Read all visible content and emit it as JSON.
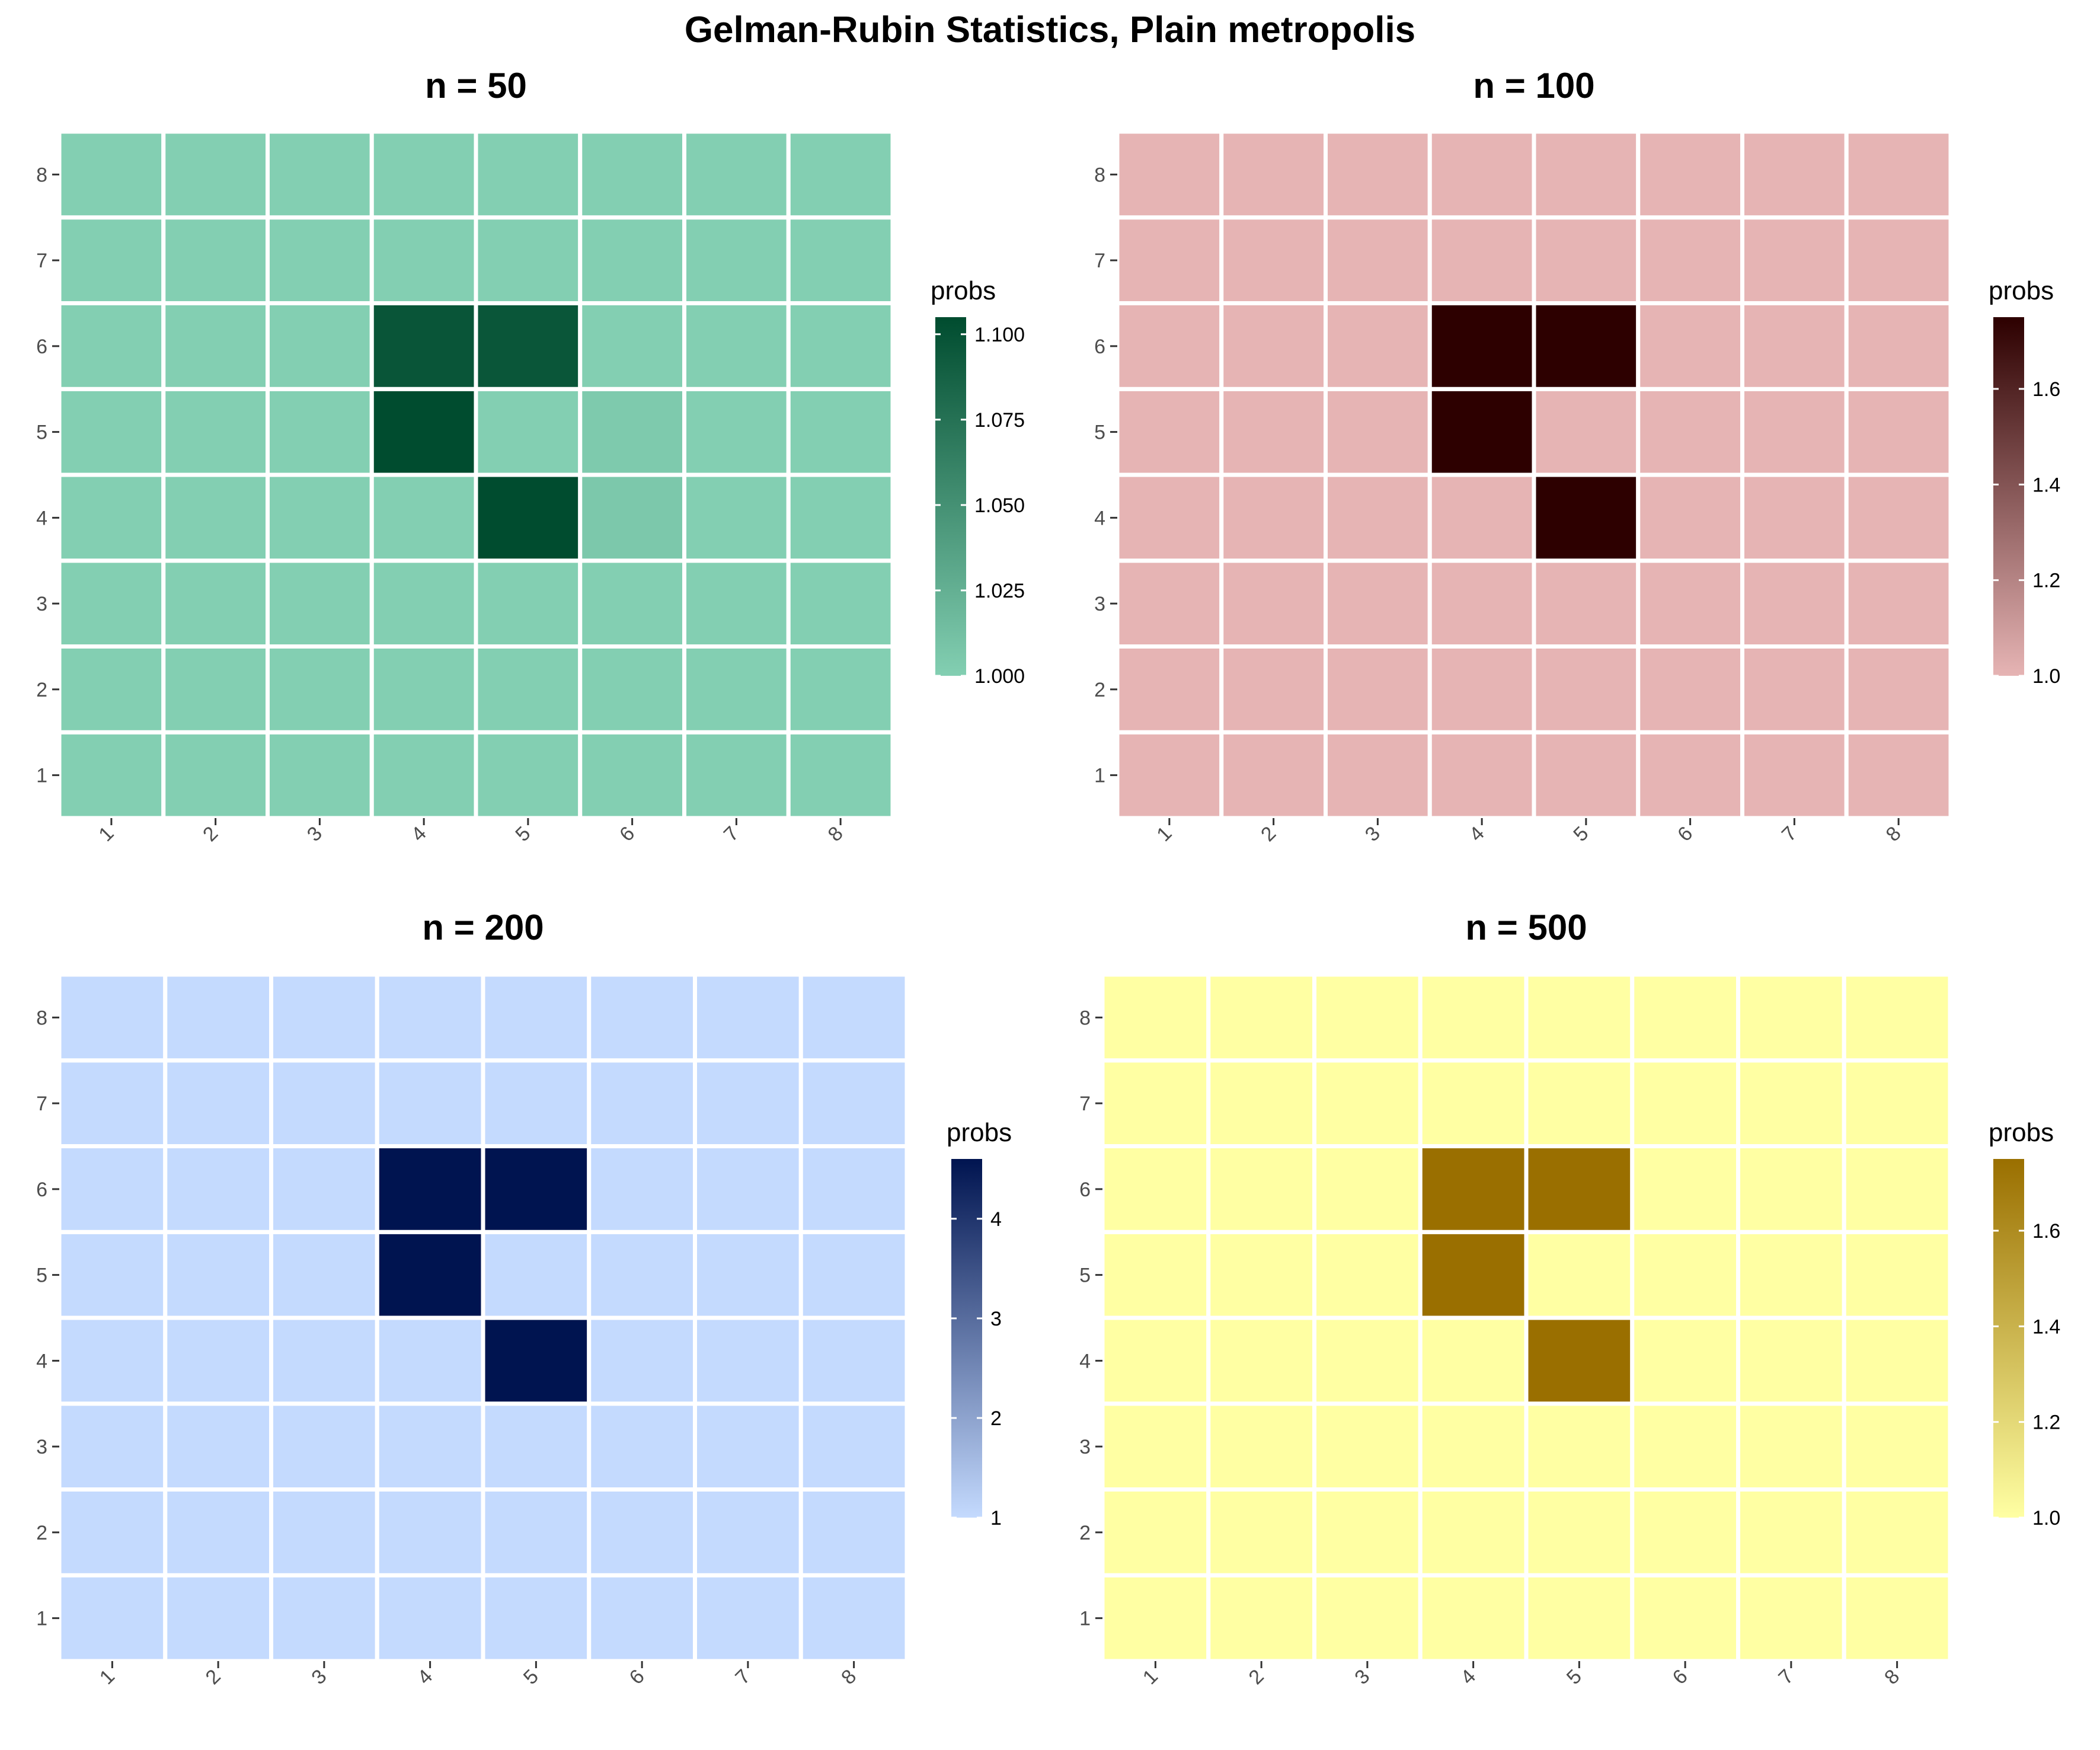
{
  "title": "Gelman-Rubin Statistics, Plain metropolis",
  "chart_data": [
    {
      "type": "heatmap",
      "title": "n = 50",
      "x_categories": [
        "1",
        "2",
        "3",
        "4",
        "5",
        "6",
        "7",
        "8"
      ],
      "y_categories": [
        "1",
        "2",
        "3",
        "4",
        "5",
        "6",
        "7",
        "8"
      ],
      "legend_title": "probs",
      "color_low": "#83cfb2",
      "color_high": "#004c2f",
      "zlim": [
        1.0,
        1.105
      ],
      "legend_breaks": [
        "1.000",
        "1.025",
        "1.050",
        "1.075",
        "1.100"
      ],
      "values": [
        [
          1.0,
          1.0,
          1.0,
          1.0,
          1.0,
          1.0,
          1.0,
          1.0
        ],
        [
          1.0,
          1.0,
          1.0,
          1.0,
          1.0,
          1.0,
          1.0,
          1.0
        ],
        [
          1.0,
          1.0,
          1.0,
          1.0,
          1.0,
          1.0,
          1.0,
          1.0
        ],
        [
          1.0,
          1.0,
          1.0,
          1.0,
          1.105,
          1.006,
          1.0,
          1.0
        ],
        [
          1.0,
          1.0,
          1.0,
          1.105,
          1.0,
          1.004,
          1.0,
          1.0
        ],
        [
          1.0,
          1.0,
          1.0,
          1.098,
          1.097,
          1.0,
          1.0,
          1.0
        ],
        [
          1.0,
          1.0,
          1.0,
          1.0,
          1.0,
          1.0,
          1.0,
          1.0
        ],
        [
          1.0,
          1.0,
          1.0,
          1.0,
          1.0,
          1.0,
          1.0,
          1.0
        ]
      ]
    },
    {
      "type": "heatmap",
      "title": "n = 100",
      "x_categories": [
        "1",
        "2",
        "3",
        "4",
        "5",
        "6",
        "7",
        "8"
      ],
      "y_categories": [
        "1",
        "2",
        "3",
        "4",
        "5",
        "6",
        "7",
        "8"
      ],
      "legend_title": "probs",
      "color_low": "#e6b4b4",
      "color_high": "#2d0000",
      "zlim": [
        1.0,
        1.75
      ],
      "legend_breaks": [
        "1.0",
        "1.2",
        "1.4",
        "1.6"
      ],
      "values": [
        [
          1.0,
          1.0,
          1.0,
          1.0,
          1.0,
          1.0,
          1.0,
          1.0
        ],
        [
          1.0,
          1.0,
          1.0,
          1.0,
          1.0,
          1.0,
          1.0,
          1.0
        ],
        [
          1.0,
          1.0,
          1.0,
          1.0,
          1.0,
          1.0,
          1.0,
          1.0
        ],
        [
          1.0,
          1.0,
          1.0,
          1.0,
          1.75,
          1.0,
          1.0,
          1.0
        ],
        [
          1.0,
          1.0,
          1.0,
          1.75,
          1.0,
          1.0,
          1.0,
          1.0
        ],
        [
          1.0,
          1.0,
          1.0,
          1.75,
          1.75,
          1.0,
          1.0,
          1.0
        ],
        [
          1.0,
          1.0,
          1.0,
          1.0,
          1.0,
          1.0,
          1.0,
          1.0
        ],
        [
          1.0,
          1.0,
          1.0,
          1.0,
          1.0,
          1.0,
          1.0,
          1.0
        ]
      ]
    },
    {
      "type": "heatmap",
      "title": "n = 200",
      "x_categories": [
        "1",
        "2",
        "3",
        "4",
        "5",
        "6",
        "7",
        "8"
      ],
      "y_categories": [
        "1",
        "2",
        "3",
        "4",
        "5",
        "6",
        "7",
        "8"
      ],
      "legend_title": "probs",
      "color_low": "#c4dafe",
      "color_high": "#001450",
      "zlim": [
        1.0,
        4.6
      ],
      "legend_breaks": [
        "1",
        "2",
        "3",
        "4"
      ],
      "values": [
        [
          1.0,
          1.0,
          1.0,
          1.0,
          1.0,
          1.0,
          1.0,
          1.0
        ],
        [
          1.0,
          1.0,
          1.0,
          1.0,
          1.0,
          1.0,
          1.0,
          1.0
        ],
        [
          1.0,
          1.0,
          1.0,
          1.0,
          1.0,
          1.0,
          1.0,
          1.0
        ],
        [
          1.0,
          1.0,
          1.0,
          1.0,
          4.6,
          1.0,
          1.0,
          1.0
        ],
        [
          1.0,
          1.0,
          1.0,
          4.6,
          1.0,
          1.0,
          1.0,
          1.0
        ],
        [
          1.0,
          1.0,
          1.0,
          4.6,
          4.6,
          1.0,
          1.0,
          1.0
        ],
        [
          1.0,
          1.0,
          1.0,
          1.0,
          1.0,
          1.0,
          1.0,
          1.0
        ],
        [
          1.0,
          1.0,
          1.0,
          1.0,
          1.0,
          1.0,
          1.0,
          1.0
        ]
      ]
    },
    {
      "type": "heatmap",
      "title": "n = 500",
      "x_categories": [
        "1",
        "2",
        "3",
        "4",
        "5",
        "6",
        "7",
        "8"
      ],
      "y_categories": [
        "1",
        "2",
        "3",
        "4",
        "5",
        "6",
        "7",
        "8"
      ],
      "legend_title": "probs",
      "color_low": "#ffffa3",
      "color_high": "#9a6f00",
      "zlim": [
        1.0,
        1.75
      ],
      "legend_breaks": [
        "1.0",
        "1.2",
        "1.4",
        "1.6"
      ],
      "values": [
        [
          1.0,
          1.0,
          1.0,
          1.0,
          1.0,
          1.0,
          1.0,
          1.0
        ],
        [
          1.0,
          1.0,
          1.0,
          1.0,
          1.0,
          1.0,
          1.0,
          1.0
        ],
        [
          1.0,
          1.0,
          1.0,
          1.0,
          1.0,
          1.0,
          1.0,
          1.0
        ],
        [
          1.0,
          1.0,
          1.0,
          1.0,
          1.75,
          1.0,
          1.0,
          1.0
        ],
        [
          1.0,
          1.0,
          1.0,
          1.75,
          1.0,
          1.0,
          1.0,
          1.0
        ],
        [
          1.0,
          1.0,
          1.0,
          1.75,
          1.75,
          1.0,
          1.0,
          1.0
        ],
        [
          1.0,
          1.0,
          1.0,
          1.0,
          1.0,
          1.0,
          1.0,
          1.0
        ],
        [
          1.0,
          1.0,
          1.0,
          1.0,
          1.0,
          1.0,
          1.0,
          1.0
        ]
      ]
    }
  ]
}
